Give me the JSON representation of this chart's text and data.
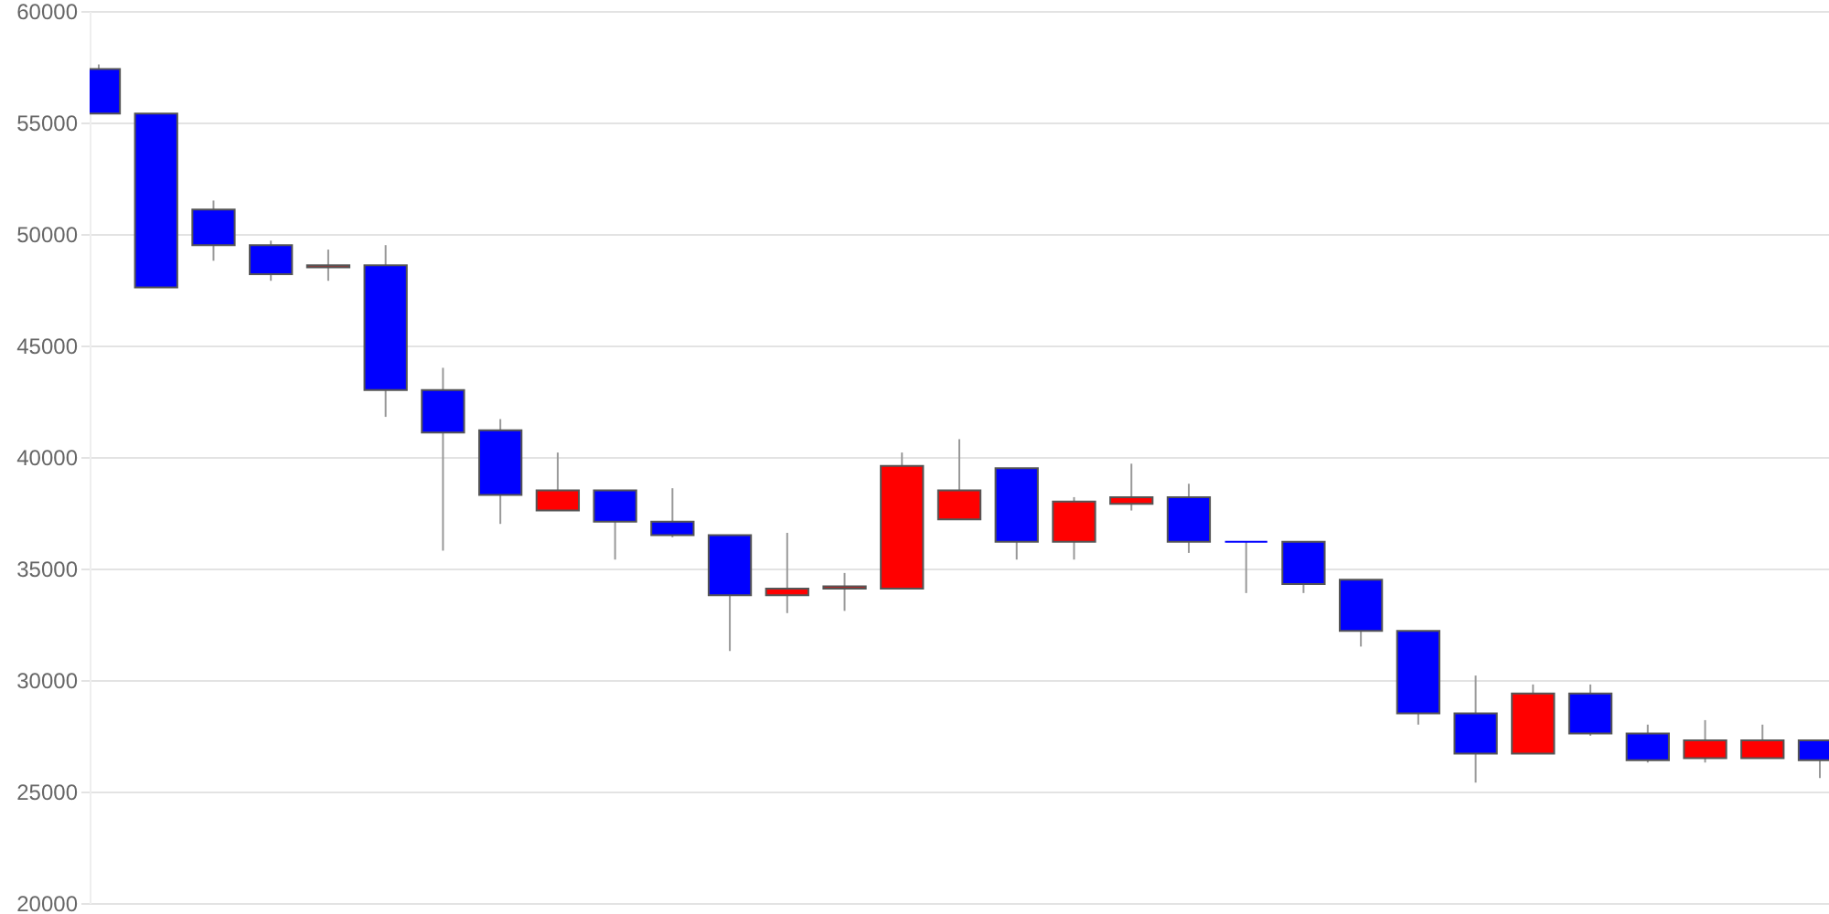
{
  "chart_data": {
    "type": "candlestick",
    "categories": [
      null,
      null,
      null,
      null,
      null,
      null,
      null,
      null,
      null,
      null,
      null,
      null,
      null,
      null,
      null,
      null,
      null,
      null,
      null,
      null,
      null,
      null,
      null,
      null,
      null,
      null,
      null,
      null,
      null,
      null,
      null
    ],
    "ohlc": [
      [
        57400,
        57600,
        55400,
        55400
      ],
      [
        55400,
        55400,
        47600,
        47600
      ],
      [
        51100,
        51500,
        48800,
        49500
      ],
      [
        49500,
        49700,
        47900,
        48200
      ],
      [
        48500,
        49300,
        47900,
        48600
      ],
      [
        48600,
        49500,
        41800,
        43000
      ],
      [
        43000,
        44000,
        35800,
        41100
      ],
      [
        41200,
        41700,
        37000,
        38300
      ],
      [
        37600,
        40200,
        37600,
        38500
      ],
      [
        38500,
        38500,
        35400,
        37100
      ],
      [
        37100,
        38600,
        36400,
        36500
      ],
      [
        36500,
        36500,
        31300,
        33800
      ],
      [
        33800,
        36600,
        33000,
        34100
      ],
      [
        34100,
        34800,
        33100,
        34200
      ],
      [
        34100,
        40200,
        34100,
        39600
      ],
      [
        37200,
        40800,
        37200,
        38500
      ],
      [
        39500,
        39500,
        35400,
        36200
      ],
      [
        36200,
        38200,
        35400,
        38000
      ],
      [
        37900,
        39700,
        37600,
        38200
      ],
      [
        38200,
        38800,
        35700,
        36200
      ],
      [
        36200,
        36200,
        33900,
        36200
      ],
      [
        36200,
        36200,
        33900,
        34300
      ],
      [
        34500,
        34500,
        31500,
        32200
      ],
      [
        32200,
        32200,
        28000,
        28500
      ],
      [
        28500,
        30200,
        25400,
        26700
      ],
      [
        26700,
        29800,
        26700,
        29400
      ],
      [
        29400,
        29800,
        27500,
        27600
      ],
      [
        27600,
        28000,
        26300,
        26400
      ],
      [
        26500,
        28200,
        26300,
        27300
      ],
      [
        26500,
        28000,
        26500,
        27300
      ],
      [
        27300,
        27300,
        25600,
        26400
      ]
    ],
    "colors": [
      "#0000ff",
      "#0000ff",
      "#0000ff",
      "#0000ff",
      "#ff0000",
      "#0000ff",
      "#0000ff",
      "#0000ff",
      "#ff0000",
      "#0000ff",
      "#0000ff",
      "#0000ff",
      "#ff0000",
      "#ff0000",
      "#ff0000",
      "#ff0000",
      "#0000ff",
      "#ff0000",
      "#ff0000",
      "#0000ff",
      "#0000ff",
      "#0000ff",
      "#0000ff",
      "#0000ff",
      "#0000ff",
      "#ff0000",
      "#0000ff",
      "#0000ff",
      "#ff0000",
      "#ff0000",
      "#0000ff"
    ],
    "ylim": [
      20000,
      60000
    ],
    "yticks": [
      20000,
      25000,
      30000,
      35000,
      40000,
      45000,
      50000,
      55000,
      60000
    ],
    "grid": "y",
    "tick_labels": "y"
  }
}
